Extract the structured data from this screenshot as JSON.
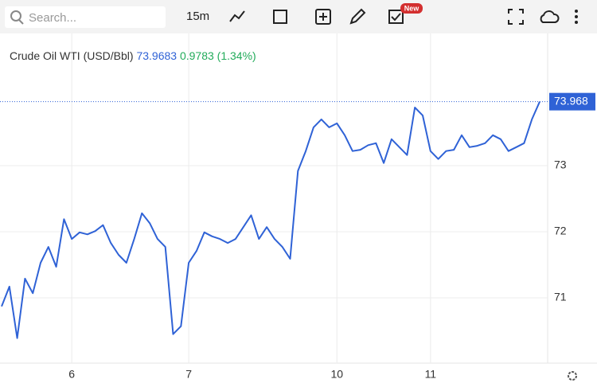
{
  "toolbar": {
    "search_placeholder": "Search...",
    "interval": "15m",
    "badge": "New"
  },
  "header": {
    "symbol": "Crude Oil WTI (USD/Bbl)",
    "price": "73.9683",
    "change": "0.9783 (1.34%)"
  },
  "chart_data": {
    "type": "line",
    "categories": [
      null,
      null,
      null,
      null,
      null,
      null,
      null,
      null,
      null,
      "6",
      null,
      null,
      null,
      null,
      null,
      null,
      null,
      null,
      null,
      null,
      null,
      null,
      null,
      null,
      "7",
      null,
      null,
      null,
      null,
      null,
      null,
      null,
      null,
      null,
      null,
      null,
      null,
      null,
      null,
      null,
      null,
      null,
      null,
      "10",
      null,
      null,
      null,
      null,
      null,
      null,
      null,
      null,
      null,
      null,
      null,
      "11",
      null,
      null,
      null,
      null,
      null,
      null,
      null,
      null,
      null,
      null,
      null,
      null,
      null,
      null
    ],
    "series": [
      {
        "name": "Crude Oil WTI",
        "color": "#2f62d6",
        "values": [
          70.87,
          71.17,
          70.39,
          71.29,
          71.07,
          71.53,
          71.77,
          71.47,
          72.19,
          71.89,
          71.99,
          71.96,
          72.01,
          72.1,
          71.83,
          71.65,
          71.53,
          71.89,
          72.28,
          72.13,
          71.89,
          71.77,
          70.45,
          70.57,
          71.53,
          71.71,
          71.99,
          71.93,
          71.89,
          71.83,
          71.89,
          72.07,
          72.25,
          71.89,
          72.07,
          71.89,
          71.77,
          71.59,
          72.92,
          73.22,
          73.58,
          73.7,
          73.58,
          73.64,
          73.46,
          73.22,
          73.24,
          73.31,
          73.34,
          73.04,
          73.4,
          73.28,
          73.16,
          73.88,
          73.76,
          73.22,
          73.1,
          73.22,
          73.24,
          73.46,
          73.28,
          73.3,
          73.34,
          73.46,
          73.4,
          73.22,
          73.28,
          73.34,
          73.7,
          73.968
        ]
      }
    ],
    "ylim": [
      70,
      75
    ],
    "yticks": [
      71,
      72,
      73
    ],
    "grid": true
  }
}
